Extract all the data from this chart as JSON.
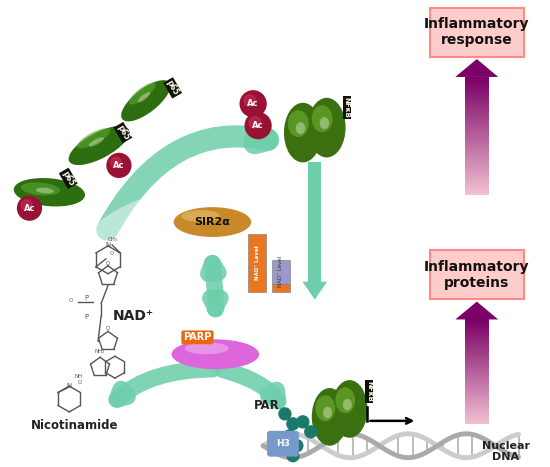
{
  "bg_color": "#ffffff",
  "inflammatory_response_label": "Inflammatory\nresponse",
  "inflammatory_proteins_label": "Inflammatory\nproteins",
  "nuclear_dna_label": "Nuclear\nDNA",
  "nad_label": "NAD⁺",
  "nicotinamide_label": "Nicotinamide",
  "par_label": "PAR",
  "h3_label": "H3",
  "sir2a_label": "SIR2α",
  "parp_label": "PARP",
  "ac_label": "Ac",
  "p65_label": "p65",
  "nfkb_label": "NFκB",
  "green_arrow_color": "#6dceaa",
  "green_arrow_dark": "#4ab890",
  "bar_orange_color": "#e87722",
  "bar_blue_color": "#9999cc",
  "sir2a_color": "#c8892a",
  "parp_color_center": "#dd66dd",
  "parp_color_edge": "#aa22aa",
  "ac_color": "#991133",
  "p65_dark": "#2d6e10",
  "p65_light": "#5da830",
  "nfkb_dark": "#3a7010",
  "nfkb_light": "#70b030",
  "dna_color1": "#aaaaaa",
  "dna_color2": "#cccccc",
  "h3_color": "#8899bb",
  "teal_dot_color": "#1a7a6a",
  "arrow_purple_dark": "#7b0067",
  "arrow_purple_light": "#f0c0d0",
  "box_fill": "#ffcccc",
  "box_edge": "#ff8888",
  "nad_bar_label": "NAD⁺ Level",
  "nad_bar2_label": "NAD⁺ Level"
}
